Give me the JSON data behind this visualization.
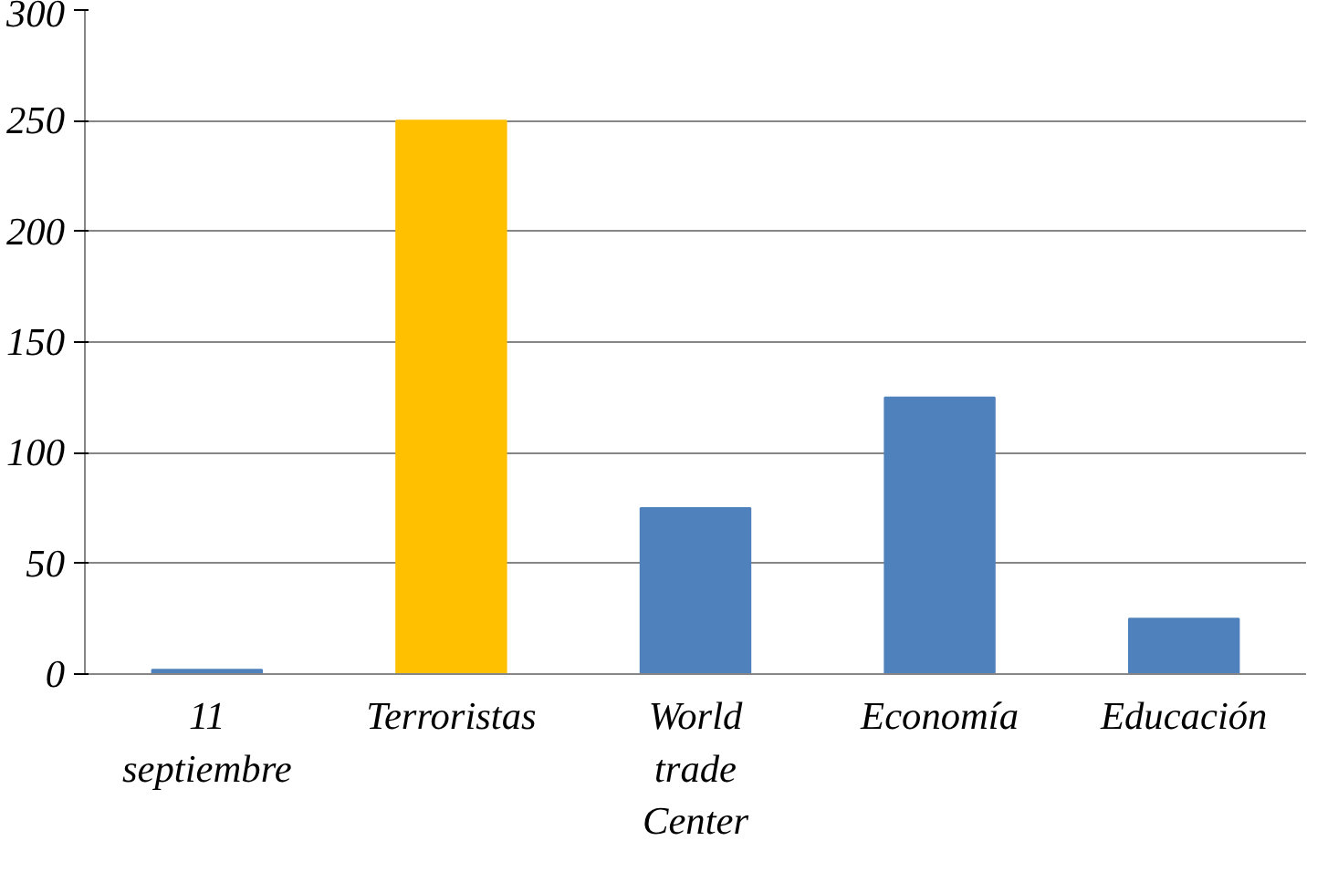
{
  "chart_data": {
    "type": "bar",
    "categories": [
      "11 septiembre",
      "Terroristas",
      "World trade Center",
      "Economía",
      "Educación"
    ],
    "values": [
      2,
      250,
      75,
      125,
      25
    ],
    "colors": [
      "#4f81bd",
      "#ffc000",
      "#4f81bd",
      "#4f81bd",
      "#4f81bd"
    ],
    "ylim": [
      0,
      300
    ],
    "yticks": [
      0,
      50,
      100,
      150,
      200,
      250,
      300
    ],
    "grid": "y"
  }
}
